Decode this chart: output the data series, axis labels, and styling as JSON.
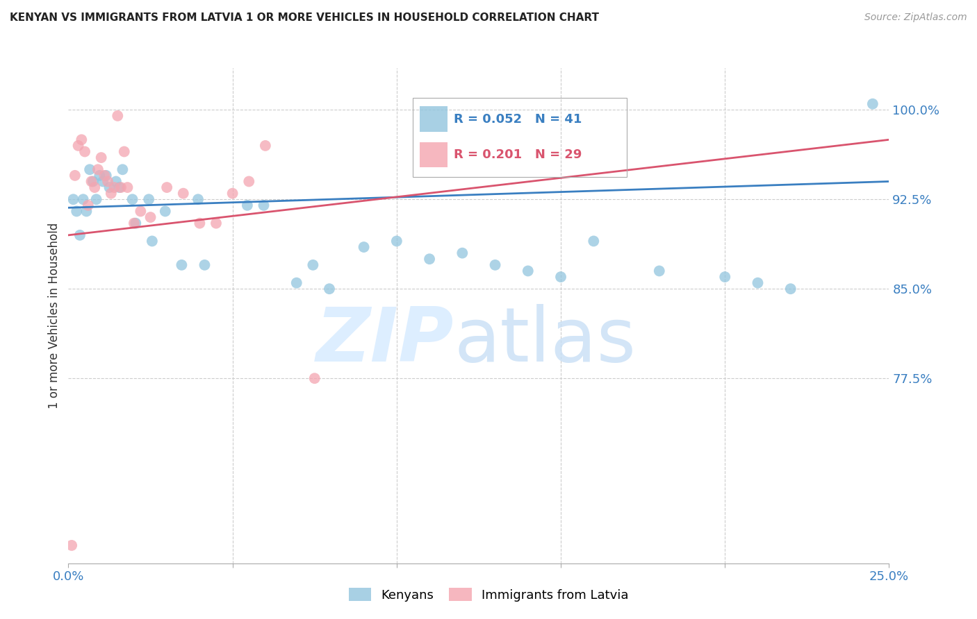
{
  "title": "KENYAN VS IMMIGRANTS FROM LATVIA 1 OR MORE VEHICLES IN HOUSEHOLD CORRELATION CHART",
  "source": "Source: ZipAtlas.com",
  "ylabel": "1 or more Vehicles in Household",
  "xlim": [
    0.0,
    25.0
  ],
  "ylim": [
    62.0,
    103.5
  ],
  "yticks": [
    77.5,
    85.0,
    92.5,
    100.0
  ],
  "ytick_labels": [
    "77.5%",
    "85.0%",
    "92.5%",
    "100.0%"
  ],
  "blue_R": 0.052,
  "blue_N": 41,
  "pink_R": 0.201,
  "pink_N": 29,
  "blue_color": "#92c5de",
  "pink_color": "#f4a5b0",
  "blue_line_color": "#3a7fc1",
  "pink_line_color": "#d9546e",
  "legend_label_blue": "Kenyans",
  "legend_label_pink": "Immigrants from Latvia",
  "blue_line_x0": 0.0,
  "blue_line_y0": 91.8,
  "blue_line_x1": 25.0,
  "blue_line_y1": 94.0,
  "pink_line_x0": 0.0,
  "pink_line_y0": 89.5,
  "pink_line_x1": 25.0,
  "pink_line_y1": 97.5,
  "blue_x": [
    0.15,
    0.25,
    0.35,
    0.45,
    0.55,
    0.65,
    0.75,
    0.85,
    0.95,
    1.05,
    1.15,
    1.25,
    1.45,
    1.55,
    1.65,
    1.95,
    2.05,
    2.45,
    2.55,
    2.95,
    3.45,
    3.95,
    4.15,
    5.45,
    5.95,
    6.95,
    7.45,
    7.95,
    9.0,
    10.0,
    11.0,
    12.0,
    13.0,
    14.0,
    15.0,
    16.0,
    18.0,
    20.0,
    21.0,
    22.0,
    24.5
  ],
  "blue_y": [
    92.5,
    91.5,
    89.5,
    92.5,
    91.5,
    95.0,
    94.0,
    92.5,
    94.5,
    94.0,
    94.5,
    93.5,
    94.0,
    93.5,
    95.0,
    92.5,
    90.5,
    92.5,
    89.0,
    91.5,
    87.0,
    92.5,
    87.0,
    92.0,
    92.0,
    85.5,
    87.0,
    85.0,
    88.5,
    89.0,
    87.5,
    88.0,
    87.0,
    86.5,
    86.0,
    89.0,
    86.5,
    86.0,
    85.5,
    85.0,
    100.5
  ],
  "pink_x": [
    0.1,
    0.2,
    0.3,
    0.4,
    0.5,
    0.6,
    0.7,
    0.8,
    0.9,
    1.0,
    1.1,
    1.2,
    1.3,
    1.4,
    1.5,
    1.6,
    1.7,
    1.8,
    2.0,
    2.2,
    2.5,
    3.0,
    3.5,
    4.0,
    4.5,
    5.0,
    5.5,
    6.0,
    7.5
  ],
  "pink_y": [
    63.5,
    94.5,
    97.0,
    97.5,
    96.5,
    92.0,
    94.0,
    93.5,
    95.0,
    96.0,
    94.5,
    94.0,
    93.0,
    93.5,
    99.5,
    93.5,
    96.5,
    93.5,
    90.5,
    91.5,
    91.0,
    93.5,
    93.0,
    90.5,
    90.5,
    93.0,
    94.0,
    97.0,
    77.5
  ]
}
